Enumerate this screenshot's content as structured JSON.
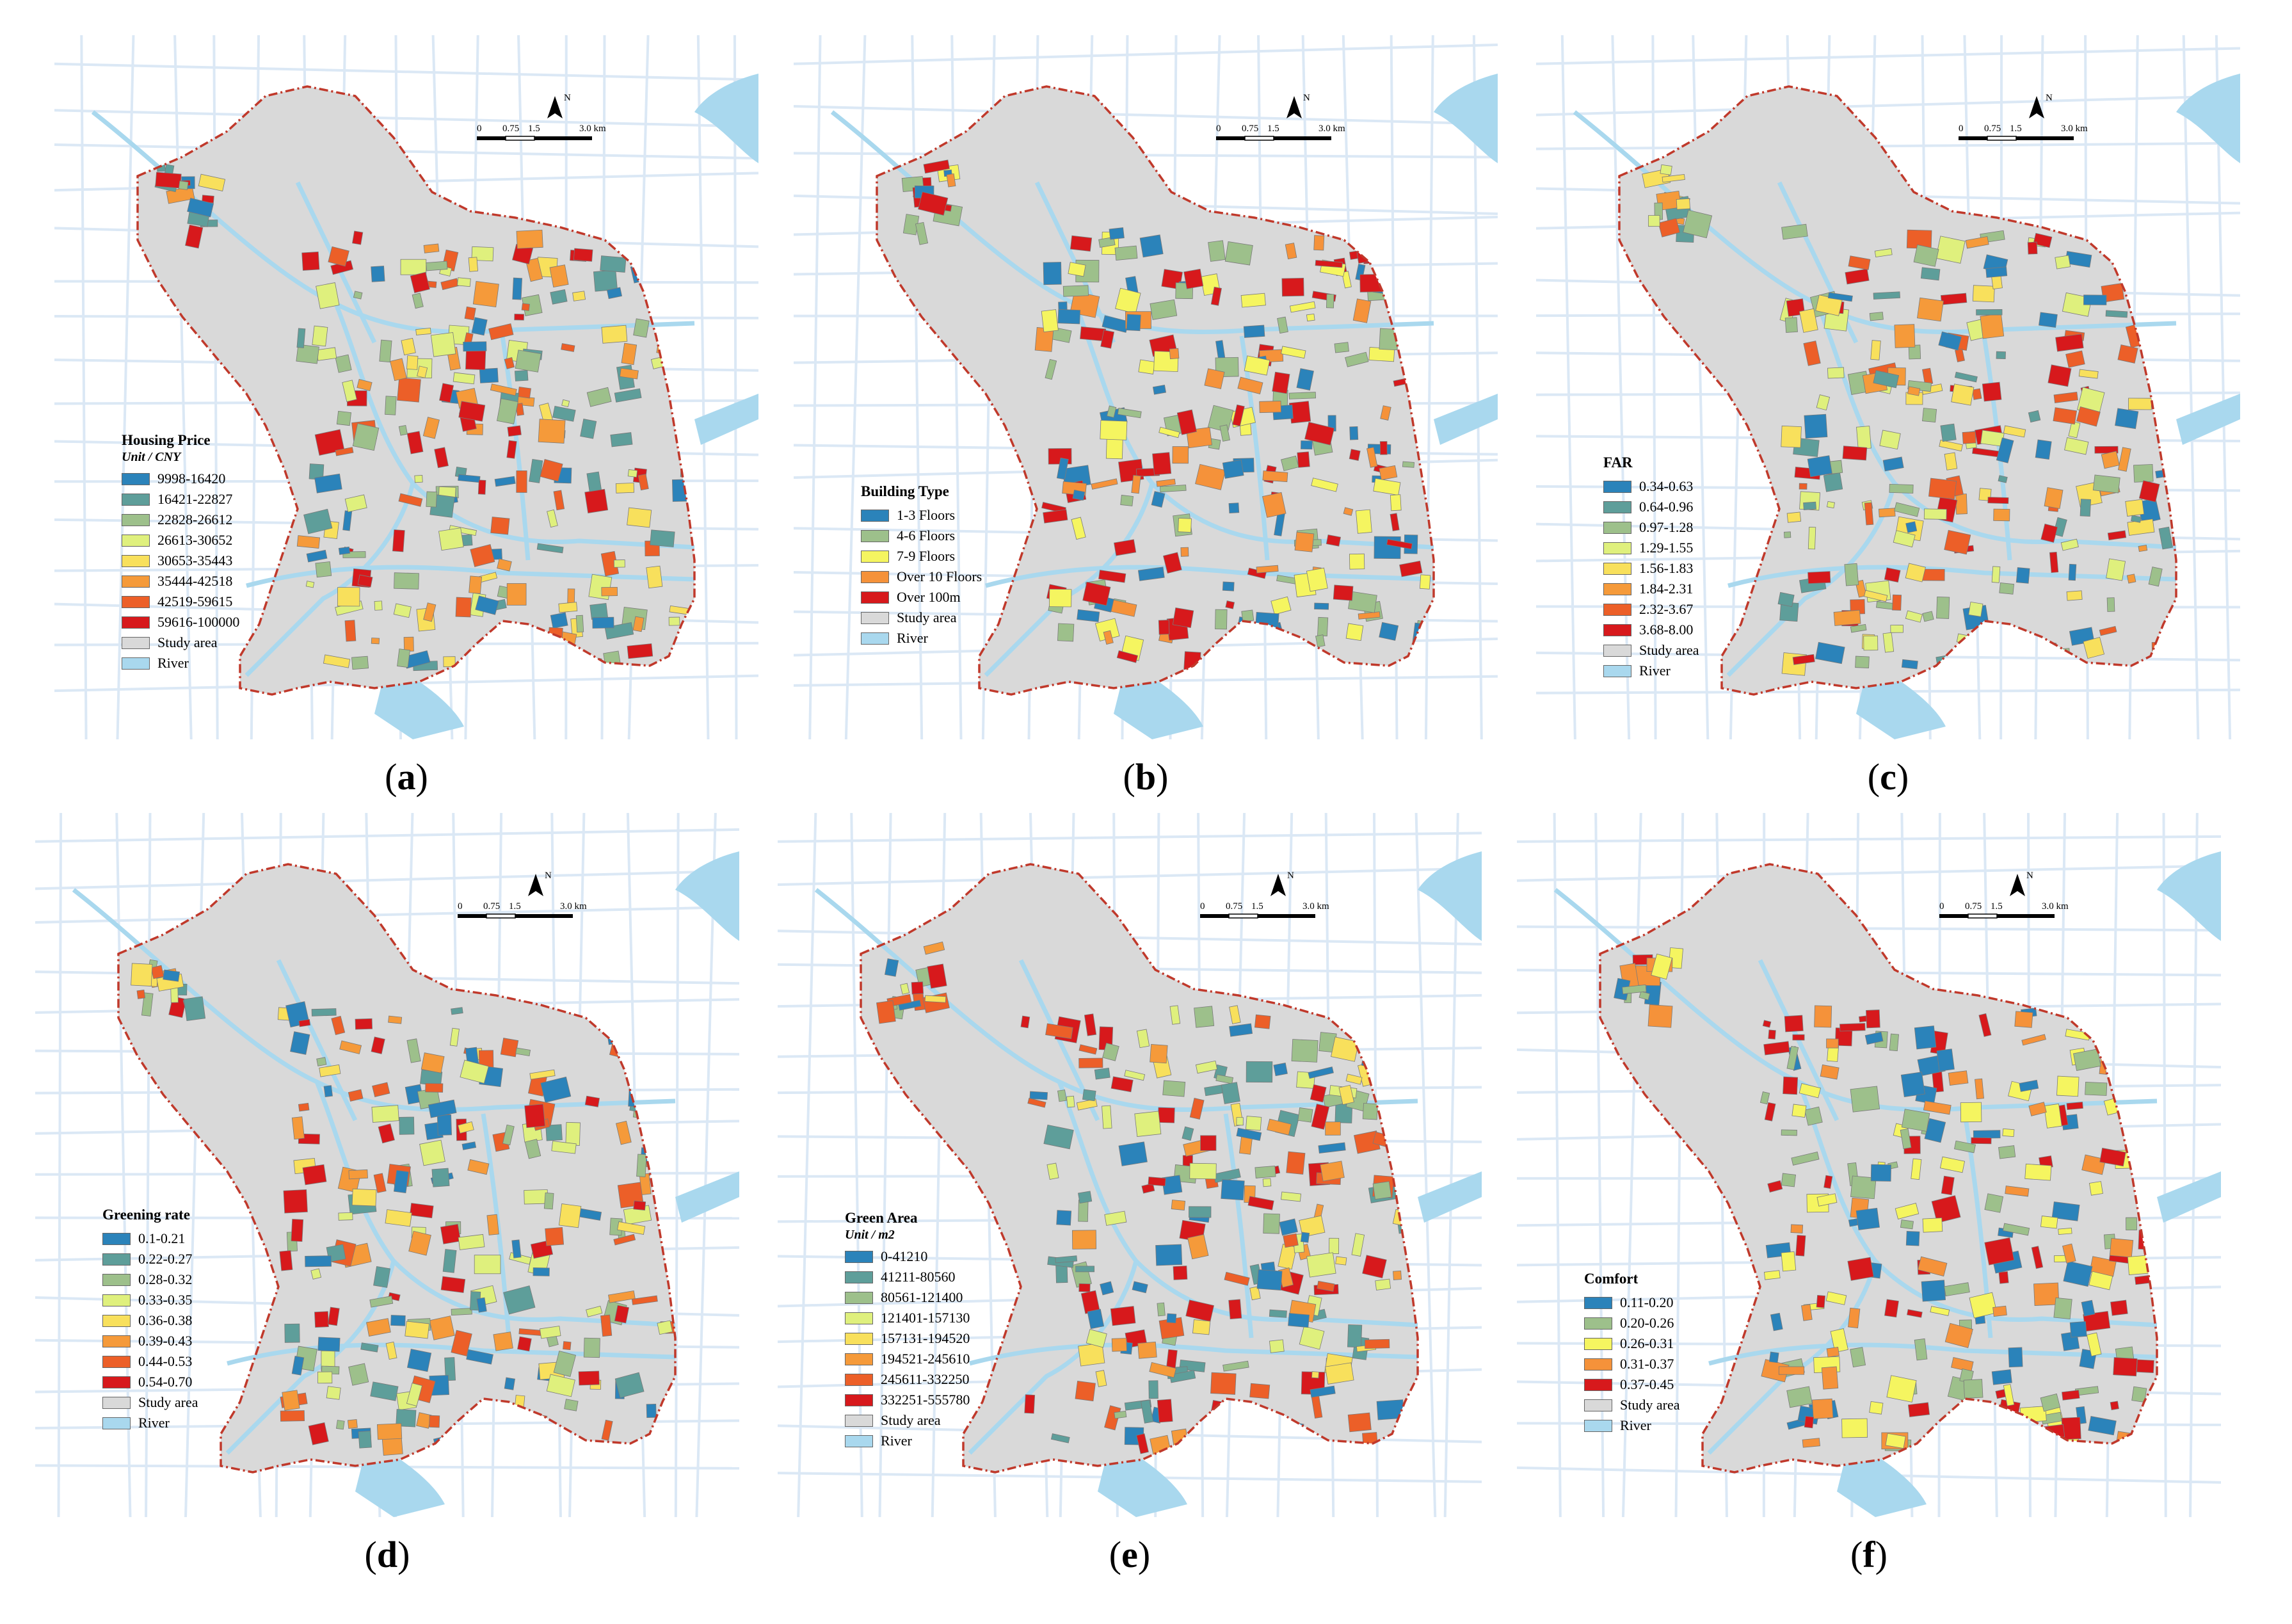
{
  "colors": {
    "background": "#ffffff",
    "study_area": "#d9d9d9",
    "river": "#a9d8ee",
    "road": "#dbe8f5",
    "boundary": "#c0392b"
  },
  "map_common": {
    "north_label": "N",
    "scale_labels": [
      "0",
      "0.75",
      "1.5",
      "3.0 km"
    ]
  },
  "panels": [
    {
      "id": "a",
      "caption_letter": "a",
      "legend_title": "Housing Price",
      "legend_unit": "Unit / CNY",
      "classes": [
        {
          "label": "9998-16420",
          "color": "#2b83ba"
        },
        {
          "label": "16421-22827",
          "color": "#5e9e9a"
        },
        {
          "label": "22828-26612",
          "color": "#9dc08b"
        },
        {
          "label": "26613-30652",
          "color": "#dff07d"
        },
        {
          "label": "30653-35443",
          "color": "#f8e05c"
        },
        {
          "label": "35444-42518",
          "color": "#f59a3a"
        },
        {
          "label": "42519-59615",
          "color": "#ec5f28"
        },
        {
          "label": "59616-100000",
          "color": "#d7191c"
        }
      ],
      "base_items": [
        {
          "label": "Study area",
          "color": "#d9d9d9"
        },
        {
          "label": "River",
          "color": "#a9d8ee"
        }
      ]
    },
    {
      "id": "b",
      "caption_letter": "b",
      "legend_title": "Building Type",
      "legend_unit": "",
      "classes": [
        {
          "label": "1-3 Floors",
          "color": "#2b83ba"
        },
        {
          "label": "4-6 Floors",
          "color": "#9dc08b"
        },
        {
          "label": "7-9 Floors",
          "color": "#f5f560"
        },
        {
          "label": "Over 10 Floors",
          "color": "#f5923a"
        },
        {
          "label": "Over 100m",
          "color": "#d7191c"
        }
      ],
      "base_items": [
        {
          "label": "Study area",
          "color": "#d9d9d9"
        },
        {
          "label": "River",
          "color": "#a9d8ee"
        }
      ]
    },
    {
      "id": "c",
      "caption_letter": "c",
      "legend_title": "FAR",
      "legend_unit": "",
      "classes": [
        {
          "label": "0.34-0.63",
          "color": "#2b83ba"
        },
        {
          "label": "0.64-0.96",
          "color": "#5e9e9a"
        },
        {
          "label": "0.97-1.28",
          "color": "#9dc08b"
        },
        {
          "label": "1.29-1.55",
          "color": "#dff07d"
        },
        {
          "label": "1.56-1.83",
          "color": "#f8e05c"
        },
        {
          "label": "1.84-2.31",
          "color": "#f59a3a"
        },
        {
          "label": "2.32-3.67",
          "color": "#ec5f28"
        },
        {
          "label": "3.68-8.00",
          "color": "#d7191c"
        }
      ],
      "base_items": [
        {
          "label": "Study area",
          "color": "#d9d9d9"
        },
        {
          "label": "River",
          "color": "#a9d8ee"
        }
      ]
    },
    {
      "id": "d",
      "caption_letter": "d",
      "legend_title": "Greening rate",
      "legend_unit": "",
      "classes": [
        {
          "label": "0.1-0.21",
          "color": "#2b83ba"
        },
        {
          "label": "0.22-0.27",
          "color": "#5e9e9a"
        },
        {
          "label": "0.28-0.32",
          "color": "#9dc08b"
        },
        {
          "label": "0.33-0.35",
          "color": "#dff07d"
        },
        {
          "label": "0.36-0.38",
          "color": "#f8e05c"
        },
        {
          "label": "0.39-0.43",
          "color": "#f59a3a"
        },
        {
          "label": "0.44-0.53",
          "color": "#ec5f28"
        },
        {
          "label": "0.54-0.70",
          "color": "#d7191c"
        }
      ],
      "base_items": [
        {
          "label": "Study area",
          "color": "#d9d9d9"
        },
        {
          "label": "River",
          "color": "#a9d8ee"
        }
      ]
    },
    {
      "id": "e",
      "caption_letter": "e",
      "legend_title": "Green Area",
      "legend_unit": "Unit / m2",
      "classes": [
        {
          "label": "0-41210",
          "color": "#2b83ba"
        },
        {
          "label": "41211-80560",
          "color": "#5e9e9a"
        },
        {
          "label": "80561-121400",
          "color": "#9dc08b"
        },
        {
          "label": "121401-157130",
          "color": "#dff07d"
        },
        {
          "label": "157131-194520",
          "color": "#f8e05c"
        },
        {
          "label": "194521-245610",
          "color": "#f59a3a"
        },
        {
          "label": "245611-332250",
          "color": "#ec5f28"
        },
        {
          "label": "332251-555780",
          "color": "#d7191c"
        }
      ],
      "base_items": [
        {
          "label": "Study area",
          "color": "#d9d9d9"
        },
        {
          "label": "River",
          "color": "#a9d8ee"
        }
      ]
    },
    {
      "id": "f",
      "caption_letter": "f",
      "legend_title": "Comfort",
      "legend_unit": "",
      "classes": [
        {
          "label": "0.11-0.20",
          "color": "#2b83ba"
        },
        {
          "label": "0.20-0.26",
          "color": "#9dc08b"
        },
        {
          "label": "0.26-0.31",
          "color": "#f5f560"
        },
        {
          "label": "0.31-0.37",
          "color": "#f5923a"
        },
        {
          "label": "0.37-0.45",
          "color": "#d7191c"
        }
      ],
      "base_items": [
        {
          "label": "Study area",
          "color": "#d9d9d9"
        },
        {
          "label": "River",
          "color": "#a9d8ee"
        }
      ]
    }
  ]
}
